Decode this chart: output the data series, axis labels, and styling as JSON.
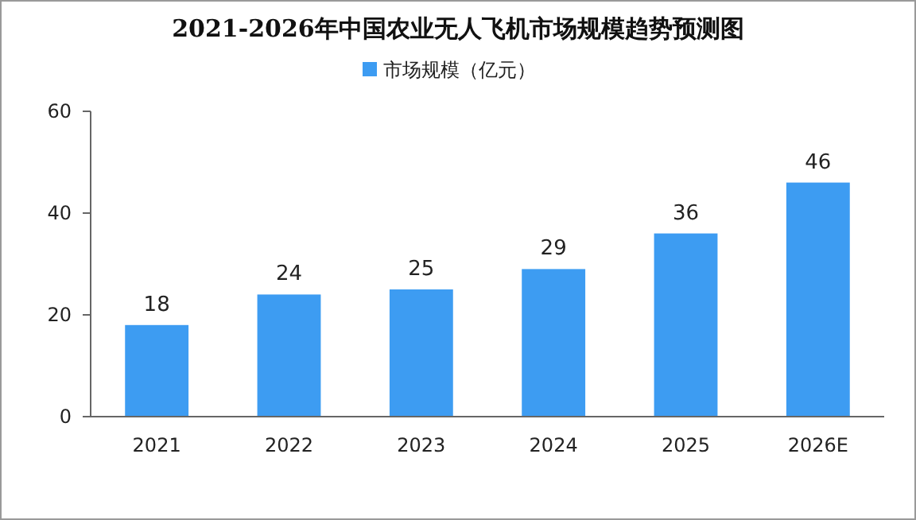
{
  "chart_data": {
    "type": "bar",
    "title": "2021-2026年中国农业无人飞机市场规模趋势预测图",
    "categories": [
      "2021",
      "2022",
      "2023",
      "2024",
      "2025",
      "2026E"
    ],
    "series": [
      {
        "name": "市场规模（亿元）",
        "color": "#3d9cf2",
        "values": [
          18,
          24,
          25,
          29,
          36,
          46
        ]
      }
    ],
    "ylim": [
      0,
      60
    ],
    "yticks": [
      0,
      20,
      40,
      60
    ],
    "grid": false,
    "legend": "top",
    "data_labels": true
  }
}
